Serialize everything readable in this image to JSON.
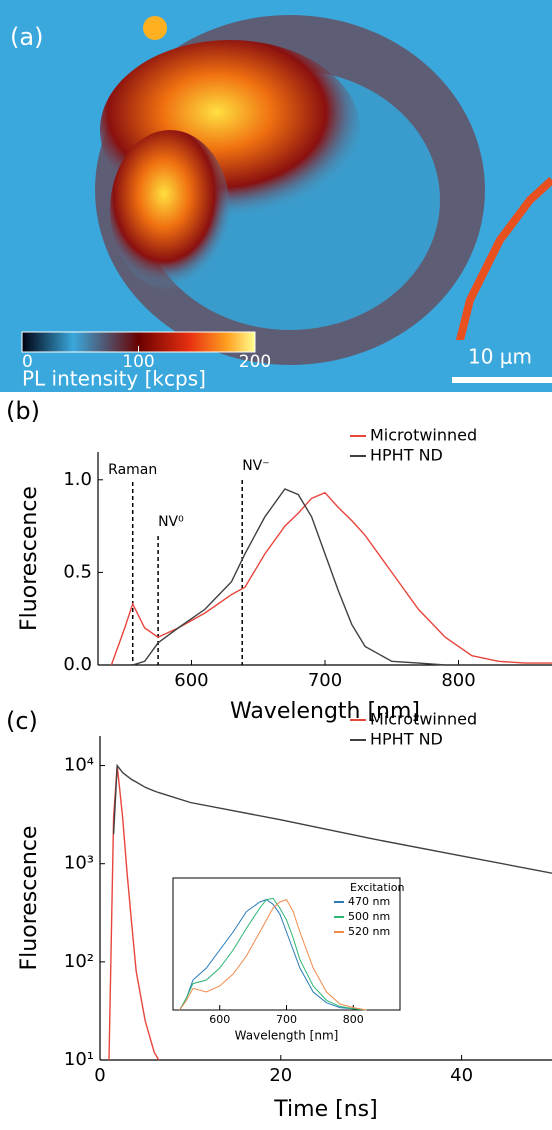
{
  "image_panel": {
    "label": "(a)",
    "colorbar": {
      "lim": [
        0,
        200
      ],
      "ticks": [
        0,
        100,
        200
      ],
      "label": "PL intensity [kcps]"
    },
    "scale_bar": "10 μm"
  },
  "chart_data": [
    {
      "type": "line",
      "panel": "(b)",
      "xlabel": "Wavelength [nm]",
      "ylabel": "Fluorescence",
      "xlim": [
        530,
        870
      ],
      "xticks": [
        600,
        700,
        800
      ],
      "ylim": [
        0,
        1.15
      ],
      "yticks": [
        {
          "value": 0,
          "label": "0.0"
        },
        0.5,
        {
          "value": 1,
          "label": "1.0"
        }
      ],
      "log_y": false,
      "legend": "upper right",
      "annotations": [
        {
          "text": "Raman",
          "x": 556
        },
        {
          "text": "NV⁰",
          "x": 575
        },
        {
          "text": "NV⁻",
          "x": 638
        }
      ],
      "x": [
        530,
        540,
        550,
        556,
        565,
        575,
        590,
        610,
        630,
        640,
        655,
        670,
        680,
        690,
        700,
        710,
        720,
        730,
        750,
        770,
        790,
        810,
        830,
        850,
        870
      ],
      "series": [
        {
          "name": "Microtwinned",
          "color": "#e8453c",
          "values": [
            null,
            0.0,
            0.2,
            0.33,
            0.2,
            0.15,
            0.2,
            0.28,
            0.38,
            0.42,
            0.6,
            0.75,
            0.82,
            0.9,
            0.93,
            0.85,
            0.78,
            0.7,
            0.5,
            0.3,
            0.15,
            0.05,
            0.02,
            0.01,
            0.01
          ]
        },
        {
          "name": "HPHT ND",
          "color": "#404040",
          "values": [
            null,
            null,
            0.0,
            0.0,
            0.02,
            0.12,
            0.2,
            0.3,
            0.45,
            0.6,
            0.8,
            0.95,
            0.92,
            0.8,
            0.6,
            0.4,
            0.22,
            0.1,
            0.02,
            0.01,
            0.0,
            0.0,
            null,
            null,
            null
          ]
        }
      ]
    },
    {
      "type": "line",
      "panel": "(c)",
      "xlabel": "Time [ns]",
      "ylabel": "Fluorescence",
      "xlim": [
        0,
        50
      ],
      "xticks": [
        0,
        20,
        40
      ],
      "ylim": [
        10,
        20000
      ],
      "yticks": [
        {
          "value": 10,
          "label": "10¹"
        },
        {
          "value": 100,
          "label": "10²"
        },
        {
          "value": 1000,
          "label": "10³"
        },
        {
          "value": 10000,
          "label": "10⁴"
        }
      ],
      "log_y": true,
      "legend": "upper right",
      "x": [
        1,
        1.5,
        1.9,
        2.5,
        3,
        3.5,
        4,
        5,
        6,
        6.5,
        10,
        20,
        30,
        40,
        50
      ],
      "series": [
        {
          "name": "Microtwinned",
          "color": "#e8453c",
          "values": [
            10,
            3000,
            10000,
            3000,
            800,
            250,
            80,
            25,
            12,
            10,
            null,
            null,
            null,
            null,
            null
          ]
        },
        {
          "name": "HPHT ND",
          "color": "#404040",
          "values": [
            null,
            2000,
            10000,
            8500,
            7800,
            7200,
            6800,
            6000,
            5500,
            5300,
            4200,
            2800,
            1800,
            1200,
            800
          ]
        }
      ]
    },
    {
      "type": "line",
      "xlabel": "Wavelength [nm]",
      "legend_title": "Excitation",
      "xlim": [
        530,
        870
      ],
      "xticks": [
        600,
        700,
        800
      ],
      "ylim": [
        0,
        1.1
      ],
      "log_y": false,
      "legend": "upper right",
      "x": [
        540,
        550,
        560,
        580,
        600,
        620,
        640,
        660,
        670,
        680,
        690,
        700,
        710,
        720,
        740,
        760,
        780,
        800,
        820
      ],
      "series": [
        {
          "name": "470 nm",
          "color": "#2a7ab8",
          "values": [
            0,
            0.1,
            0.25,
            0.35,
            0.5,
            0.65,
            0.82,
            0.9,
            0.92,
            0.88,
            0.8,
            0.65,
            0.5,
            0.35,
            0.15,
            0.06,
            0.02,
            0.01,
            0
          ]
        },
        {
          "name": "500 nm",
          "color": "#2bb673",
          "values": [
            0,
            0.1,
            0.22,
            0.25,
            0.35,
            0.5,
            0.68,
            0.85,
            0.92,
            0.93,
            0.85,
            0.75,
            0.6,
            0.42,
            0.2,
            0.08,
            0.03,
            0.01,
            0
          ]
        },
        {
          "name": "520 nm",
          "color": "#f08a4b",
          "values": [
            0,
            0.08,
            0.18,
            0.15,
            0.2,
            0.3,
            0.45,
            0.65,
            0.75,
            0.85,
            0.9,
            0.92,
            0.82,
            0.65,
            0.35,
            0.15,
            0.05,
            0.02,
            0
          ]
        }
      ]
    }
  ]
}
